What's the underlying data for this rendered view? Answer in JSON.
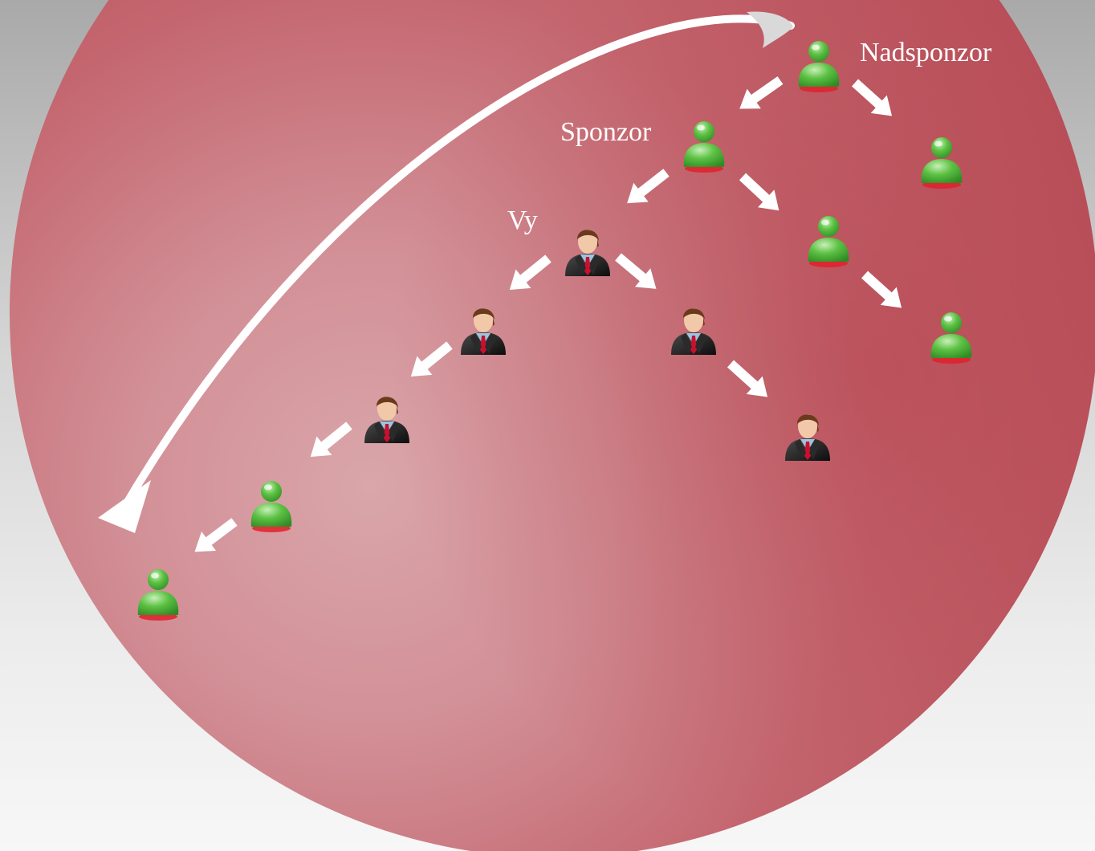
{
  "labels": {
    "top_sponsor": "Nadsponzor",
    "sponsor": "Sponzor",
    "you": "Vy"
  },
  "icons": {
    "green_member": "green-user-icon",
    "businessman": "businessman-icon"
  },
  "colors": {
    "sphere": "#c25a63",
    "sphere_highlight": "#d8a9ad",
    "arrow": "#ffffff",
    "green_member": "#55c040",
    "suit": "#1a1a1a",
    "tie": "#c8102e"
  }
}
